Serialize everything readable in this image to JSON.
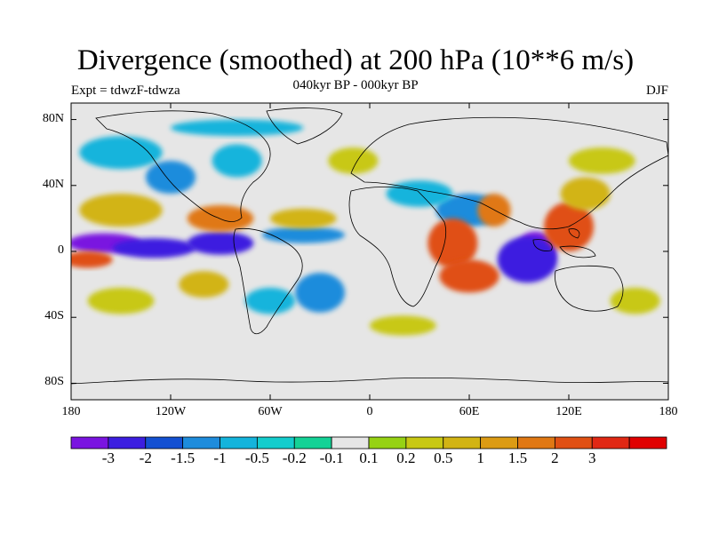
{
  "title": "Divergence (smoothed) at 200 hPa (10**6 m/s)",
  "subtitle": "040kyr BP - 000kyr BP",
  "left_label": "Expt = tdwzF-tdwza",
  "right_label": "DJF",
  "map": {
    "projection": "cylindrical equidistant",
    "lon_range": [
      -180,
      180
    ],
    "lat_range": [
      -90,
      90
    ],
    "y_ticks": [
      {
        "lat": 80,
        "label": "80N"
      },
      {
        "lat": 40,
        "label": "40N"
      },
      {
        "lat": 0,
        "label": "0"
      },
      {
        "lat": -40,
        "label": "40S"
      },
      {
        "lat": -80,
        "label": "80S"
      }
    ],
    "x_ticks": [
      {
        "lon": -180,
        "label": "180"
      },
      {
        "lon": -120,
        "label": "120W"
      },
      {
        "lon": -60,
        "label": "60W"
      },
      {
        "lon": 0,
        "label": "0"
      },
      {
        "lon": 60,
        "label": "60E"
      },
      {
        "lon": 120,
        "label": "120E"
      },
      {
        "lon": 180,
        "label": "180"
      }
    ]
  },
  "colorbar": {
    "colors": [
      "#7a14e0",
      "#3c1ee0",
      "#1450d2",
      "#1e8cdc",
      "#14b4dc",
      "#14cdcd",
      "#14d296",
      "#e6e6e6",
      "#96d214",
      "#c8c814",
      "#d2b414",
      "#dc9b14",
      "#e07814",
      "#e05014",
      "#e02814",
      "#e00000"
    ],
    "labels": [
      "-3",
      "-2",
      "-1.5",
      "-1",
      "-0.5",
      "-0.2",
      "-0.1",
      "0.1",
      "0.2",
      "0.5",
      "1",
      "1.5",
      "2",
      "3"
    ]
  },
  "field_blobs": [
    {
      "lon": -160,
      "lat": 5,
      "rx": 22,
      "ry": 6,
      "level": -3
    },
    {
      "lon": -130,
      "lat": 2,
      "rx": 25,
      "ry": 6,
      "level": -2
    },
    {
      "lon": -90,
      "lat": 5,
      "rx": 20,
      "ry": 7,
      "level": -2
    },
    {
      "lon": -40,
      "lat": 10,
      "rx": 25,
      "ry": 5,
      "level": -1
    },
    {
      "lon": -120,
      "lat": 45,
      "rx": 15,
      "ry": 10,
      "level": -1
    },
    {
      "lon": -80,
      "lat": 55,
      "rx": 15,
      "ry": 10,
      "level": -0.5
    },
    {
      "lon": -150,
      "lat": 60,
      "rx": 25,
      "ry": 10,
      "level": -0.5
    },
    {
      "lon": 100,
      "lat": 0,
      "rx": 12,
      "ry": 12,
      "level": -3
    },
    {
      "lon": 95,
      "lat": -5,
      "rx": 18,
      "ry": 14,
      "level": -2
    },
    {
      "lon": 60,
      "lat": 25,
      "rx": 20,
      "ry": 10,
      "level": -1
    },
    {
      "lon": 30,
      "lat": 35,
      "rx": 20,
      "ry": 8,
      "level": -0.5
    },
    {
      "lon": -30,
      "lat": -25,
      "rx": 15,
      "ry": 12,
      "level": -1
    },
    {
      "lon": -60,
      "lat": -30,
      "rx": 15,
      "ry": 8,
      "level": -0.5
    },
    {
      "lon": -150,
      "lat": 25,
      "rx": 25,
      "ry": 10,
      "level": 1
    },
    {
      "lon": -90,
      "lat": 20,
      "rx": 20,
      "ry": 8,
      "level": 1.5
    },
    {
      "lon": -40,
      "lat": 20,
      "rx": 20,
      "ry": 6,
      "level": 1
    },
    {
      "lon": -170,
      "lat": -5,
      "rx": 15,
      "ry": 5,
      "level": 2
    },
    {
      "lon": 50,
      "lat": 5,
      "rx": 15,
      "ry": 15,
      "level": 2
    },
    {
      "lon": 60,
      "lat": -15,
      "rx": 18,
      "ry": 10,
      "level": 2
    },
    {
      "lon": 75,
      "lat": 25,
      "rx": 10,
      "ry": 10,
      "level": 1.5
    },
    {
      "lon": 120,
      "lat": 15,
      "rx": 15,
      "ry": 15,
      "level": 2
    },
    {
      "lon": 130,
      "lat": 35,
      "rx": 15,
      "ry": 10,
      "level": 1
    },
    {
      "lon": -100,
      "lat": -20,
      "rx": 15,
      "ry": 8,
      "level": 1
    },
    {
      "lon": -150,
      "lat": -30,
      "rx": 20,
      "ry": 8,
      "level": 0.5
    },
    {
      "lon": 20,
      "lat": -45,
      "rx": 20,
      "ry": 6,
      "level": 0.5
    },
    {
      "lon": 160,
      "lat": -30,
      "rx": 15,
      "ry": 8,
      "level": 0.5
    },
    {
      "lon": -80,
      "lat": 75,
      "rx": 40,
      "ry": 5,
      "level": -0.5
    },
    {
      "lon": 140,
      "lat": 55,
      "rx": 20,
      "ry": 8,
      "level": 0.5
    },
    {
      "lon": -10,
      "lat": 55,
      "rx": 15,
      "ry": 8,
      "level": 0.5
    }
  ]
}
